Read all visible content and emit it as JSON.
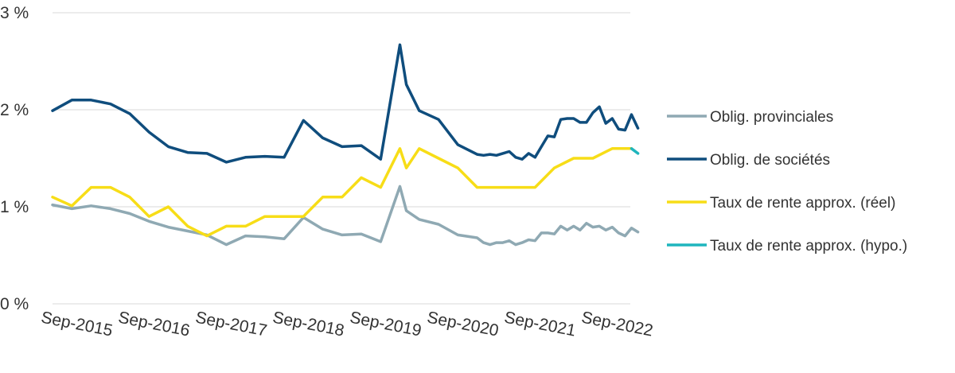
{
  "chart_data": {
    "type": "line",
    "title": "",
    "xlabel": "",
    "ylabel": "",
    "ylim": [
      0,
      3
    ],
    "y_unit": "%",
    "yticks": [
      0,
      1,
      2,
      3
    ],
    "ytick_labels": [
      "0 %",
      "1 %",
      "2 %",
      "3 %"
    ],
    "grid": "horizontal",
    "legend_position": "right",
    "xlim": [
      "2015-06",
      "2022-12"
    ],
    "xticks": [
      "2015-09",
      "2016-09",
      "2017-09",
      "2018-09",
      "2019-09",
      "2020-09",
      "2021-09",
      "2022-09"
    ],
    "xtick_labels": [
      "Sep-2015",
      "Sep-2016",
      "Sep-2017",
      "Sep-2018",
      "Sep-2019",
      "Sep-2020",
      "Sep-2021",
      "Sep-2022"
    ],
    "series": [
      {
        "name": "Oblig. provinciales",
        "color": "#8fa9b3",
        "points": [
          [
            "2015-06",
            1.02
          ],
          [
            "2015-09",
            0.98
          ],
          [
            "2015-12",
            1.01
          ],
          [
            "2016-03",
            0.98
          ],
          [
            "2016-06",
            0.93
          ],
          [
            "2016-09",
            0.85
          ],
          [
            "2016-12",
            0.79
          ],
          [
            "2017-03",
            0.75
          ],
          [
            "2017-06",
            0.71
          ],
          [
            "2017-09",
            0.61
          ],
          [
            "2017-12",
            0.7
          ],
          [
            "2018-03",
            0.69
          ],
          [
            "2018-06",
            0.67
          ],
          [
            "2018-09",
            0.89
          ],
          [
            "2018-12",
            0.77
          ],
          [
            "2019-03",
            0.71
          ],
          [
            "2019-06",
            0.72
          ],
          [
            "2019-09",
            0.64
          ],
          [
            "2019-12",
            1.21
          ],
          [
            "2020-01",
            0.96
          ],
          [
            "2020-03",
            0.87
          ],
          [
            "2020-06",
            0.82
          ],
          [
            "2020-09",
            0.71
          ],
          [
            "2020-12",
            0.68
          ],
          [
            "2021-01",
            0.63
          ],
          [
            "2021-02",
            0.61
          ],
          [
            "2021-03",
            0.63
          ],
          [
            "2021-04",
            0.63
          ],
          [
            "2021-05",
            0.65
          ],
          [
            "2021-06",
            0.61
          ],
          [
            "2021-07",
            0.63
          ],
          [
            "2021-08",
            0.66
          ],
          [
            "2021-09",
            0.65
          ],
          [
            "2021-10",
            0.73
          ],
          [
            "2021-11",
            0.73
          ],
          [
            "2021-12",
            0.72
          ],
          [
            "2022-01",
            0.8
          ],
          [
            "2022-02",
            0.76
          ],
          [
            "2022-03",
            0.8
          ],
          [
            "2022-04",
            0.76
          ],
          [
            "2022-05",
            0.83
          ],
          [
            "2022-06",
            0.79
          ],
          [
            "2022-07",
            0.8
          ],
          [
            "2022-08",
            0.76
          ],
          [
            "2022-09",
            0.79
          ],
          [
            "2022-10",
            0.73
          ],
          [
            "2022-11",
            0.7
          ],
          [
            "2022-12",
            0.78
          ],
          [
            "2023-01",
            0.74
          ]
        ]
      },
      {
        "name": "Oblig. de sociétés",
        "color": "#0f4d7d",
        "points": [
          [
            "2015-06",
            1.99
          ],
          [
            "2015-09",
            2.1
          ],
          [
            "2015-12",
            2.1
          ],
          [
            "2016-03",
            2.06
          ],
          [
            "2016-06",
            1.96
          ],
          [
            "2016-09",
            1.77
          ],
          [
            "2016-12",
            1.62
          ],
          [
            "2017-03",
            1.56
          ],
          [
            "2017-06",
            1.55
          ],
          [
            "2017-09",
            1.46
          ],
          [
            "2017-12",
            1.51
          ],
          [
            "2018-03",
            1.52
          ],
          [
            "2018-06",
            1.51
          ],
          [
            "2018-09",
            1.89
          ],
          [
            "2018-12",
            1.71
          ],
          [
            "2019-03",
            1.62
          ],
          [
            "2019-06",
            1.63
          ],
          [
            "2019-09",
            1.49
          ],
          [
            "2019-12",
            2.67
          ],
          [
            "2020-01",
            2.26
          ],
          [
            "2020-03",
            1.99
          ],
          [
            "2020-06",
            1.9
          ],
          [
            "2020-09",
            1.64
          ],
          [
            "2020-12",
            1.54
          ],
          [
            "2021-01",
            1.53
          ],
          [
            "2021-02",
            1.54
          ],
          [
            "2021-03",
            1.53
          ],
          [
            "2021-04",
            1.55
          ],
          [
            "2021-05",
            1.57
          ],
          [
            "2021-06",
            1.51
          ],
          [
            "2021-07",
            1.49
          ],
          [
            "2021-08",
            1.55
          ],
          [
            "2021-09",
            1.51
          ],
          [
            "2021-10",
            1.62
          ],
          [
            "2021-11",
            1.73
          ],
          [
            "2021-12",
            1.72
          ],
          [
            "2022-01",
            1.9
          ],
          [
            "2022-02",
            1.91
          ],
          [
            "2022-03",
            1.91
          ],
          [
            "2022-04",
            1.87
          ],
          [
            "2022-05",
            1.87
          ],
          [
            "2022-06",
            1.97
          ],
          [
            "2022-07",
            2.03
          ],
          [
            "2022-08",
            1.86
          ],
          [
            "2022-09",
            1.91
          ],
          [
            "2022-10",
            1.8
          ],
          [
            "2022-11",
            1.79
          ],
          [
            "2022-12",
            1.95
          ],
          [
            "2023-01",
            1.81
          ]
        ]
      },
      {
        "name": "Taux de rente approx. (réel)",
        "color": "#f7dd17",
        "points": [
          [
            "2015-06",
            1.1
          ],
          [
            "2015-09",
            1.01
          ],
          [
            "2015-12",
            1.2
          ],
          [
            "2016-03",
            1.2
          ],
          [
            "2016-06",
            1.1
          ],
          [
            "2016-09",
            0.9
          ],
          [
            "2016-12",
            1.0
          ],
          [
            "2017-03",
            0.8
          ],
          [
            "2017-06",
            0.7
          ],
          [
            "2017-09",
            0.8
          ],
          [
            "2017-12",
            0.8
          ],
          [
            "2018-03",
            0.9
          ],
          [
            "2018-06",
            0.9
          ],
          [
            "2018-09",
            0.9
          ],
          [
            "2018-12",
            1.1
          ],
          [
            "2019-03",
            1.1
          ],
          [
            "2019-06",
            1.3
          ],
          [
            "2019-09",
            1.2
          ],
          [
            "2019-12",
            1.6
          ],
          [
            "2020-01",
            1.4
          ],
          [
            "2020-03",
            1.6
          ],
          [
            "2020-06",
            1.5
          ],
          [
            "2020-09",
            1.4
          ],
          [
            "2020-12",
            1.2
          ],
          [
            "2021-03",
            1.2
          ],
          [
            "2021-06",
            1.2
          ],
          [
            "2021-09",
            1.2
          ],
          [
            "2021-12",
            1.4
          ],
          [
            "2022-03",
            1.5
          ],
          [
            "2022-06",
            1.5
          ],
          [
            "2022-09",
            1.6
          ],
          [
            "2022-12",
            1.6
          ]
        ]
      },
      {
        "name": "Taux de rente approx. (hypo.)",
        "color": "#1fb5bd",
        "points": [
          [
            "2022-12",
            1.6
          ],
          [
            "2023-01",
            1.55
          ]
        ]
      }
    ]
  }
}
